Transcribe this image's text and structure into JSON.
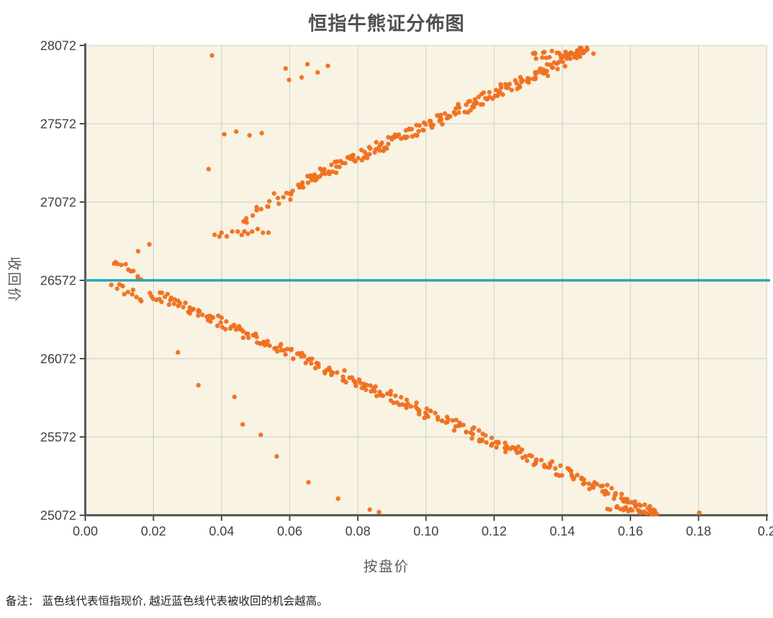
{
  "note": "备注： 蓝色线代表恒指现价, 越近蓝色线代表被收回的机会越高。",
  "chart_data": {
    "type": "scatter",
    "title": "恒指牛熊证分佈图",
    "xlabel": "按盘价",
    "ylabel": "收回价",
    "xlim": [
      0,
      0.2
    ],
    "ylim": [
      25072,
      28072
    ],
    "xticks": [
      0,
      0.02,
      0.04,
      0.06,
      0.08,
      0.1,
      0.12,
      0.14,
      0.16,
      0.18,
      0.2
    ],
    "xtick_labels": [
      "0.00",
      "0.02",
      "0.04",
      "0.06",
      "0.08",
      "0.10",
      "0.12",
      "0.14",
      "0.16",
      "0.18",
      "0.2"
    ],
    "yticks": [
      28072,
      27572,
      27072,
      26572,
      26072,
      25572,
      25072
    ],
    "ytick_labels": [
      "28072",
      "27572",
      "27072",
      "26572",
      "26072",
      "25572",
      "25072"
    ],
    "grid": true,
    "legend": "none",
    "plot_background": "#f8f3e2",
    "grid_color": "#cccccc",
    "axis_color": "#4d4d4d",
    "point_color": "#f06f1f",
    "point_radius": 3.3,
    "reference_line": {
      "y": 26572,
      "color": "#27a4b9",
      "width": 3.5,
      "meaning": "恒指现价"
    },
    "seed": 13,
    "series": [
      {
        "id": "above-reference-line",
        "bands": [
          {
            "x0": 0.0635,
            "x1": 0.1485,
            "y0": 27195,
            "y1": 28050,
            "n": 215,
            "jx": 0.0012,
            "jy": 36
          },
          {
            "x0": 0.131,
            "x1": 0.1475,
            "y0": 28000,
            "y1": 28045,
            "n": 26,
            "jx": 0.0015,
            "jy": 22
          },
          {
            "x0": 0.0455,
            "x1": 0.063,
            "y0": 26945,
            "y1": 27190,
            "n": 20,
            "jx": 0.0012,
            "jy": 28
          },
          {
            "x0": 0.0375,
            "x1": 0.0535,
            "y0": 26860,
            "y1": 26890,
            "n": 13,
            "jx": 0.0008,
            "jy": 16
          },
          {
            "x0": 0.0082,
            "x1": 0.0168,
            "y0": 26695,
            "y1": 26585,
            "n": 11,
            "jx": 0.0006,
            "jy": 26
          }
        ],
        "points": [
          [
            0.0372,
            28008
          ],
          [
            0.0588,
            27925
          ],
          [
            0.0652,
            27952
          ],
          [
            0.0682,
            27900
          ],
          [
            0.0712,
            27942
          ],
          [
            0.0598,
            27852
          ],
          [
            0.0635,
            27868
          ],
          [
            0.0408,
            27505
          ],
          [
            0.0443,
            27522
          ],
          [
            0.0482,
            27498
          ],
          [
            0.0518,
            27512
          ],
          [
            0.0362,
            27282
          ],
          [
            0.0568,
            27062
          ],
          [
            0.0602,
            27088
          ],
          [
            0.0155,
            26758
          ],
          [
            0.0188,
            26802
          ]
        ]
      },
      {
        "id": "below-reference-line",
        "bands": [
          {
            "x0": 0.0195,
            "x1": 0.1675,
            "y0": 26492,
            "y1": 25090,
            "n": 300,
            "jx": 0.0013,
            "jy": 30
          },
          {
            "x0": 0.0082,
            "x1": 0.0168,
            "y0": 26552,
            "y1": 26455,
            "n": 12,
            "jx": 0.0007,
            "jy": 26
          },
          {
            "x0": 0.154,
            "x1": 0.168,
            "y0": 25118,
            "y1": 25090,
            "n": 24,
            "jx": 0.0012,
            "jy": 15
          }
        ],
        "points": [
          [
            0.0272,
            26112
          ],
          [
            0.0332,
            25902
          ],
          [
            0.0438,
            25828
          ],
          [
            0.0462,
            25652
          ],
          [
            0.0515,
            25585
          ],
          [
            0.0562,
            25448
          ],
          [
            0.0655,
            25282
          ],
          [
            0.0742,
            25178
          ],
          [
            0.0835,
            25108
          ],
          [
            0.0862,
            25092
          ],
          [
            0.1802,
            25088
          ]
        ]
      }
    ]
  }
}
